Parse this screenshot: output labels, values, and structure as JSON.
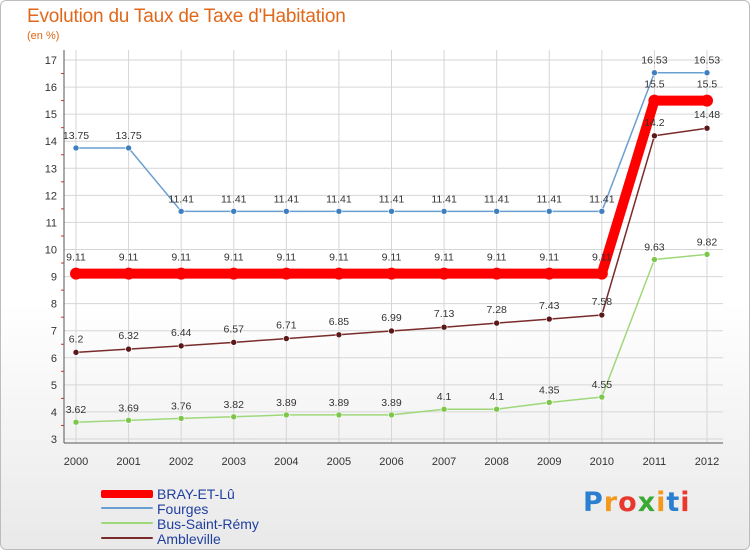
{
  "header": {
    "title": "Evolution du Taux de Taxe d'Habitation",
    "subtitle": "(en %)"
  },
  "chart_data": {
    "type": "line",
    "title": "Evolution du Taux de Taxe d'Habitation",
    "ylabel": "(en %)",
    "xlabel": "",
    "ylim": [
      3,
      17
    ],
    "yticks": [
      3,
      4,
      5,
      6,
      7,
      8,
      9,
      10,
      11,
      12,
      13,
      14,
      15,
      16,
      17
    ],
    "categories": [
      "2000",
      "2001",
      "2002",
      "2003",
      "2004",
      "2005",
      "2006",
      "2007",
      "2008",
      "2009",
      "2010",
      "2011",
      "2012"
    ],
    "grid": true,
    "legend": "bottom-left",
    "series": [
      {
        "name": "Fourges",
        "key": "fourges",
        "color": "#6a9fd1",
        "marker": "#3f7fc0",
        "values": [
          13.75,
          13.75,
          11.41,
          11.41,
          11.41,
          11.41,
          11.41,
          11.41,
          11.41,
          11.41,
          11.41,
          16.53,
          16.53
        ],
        "labels": [
          "13.75",
          "13.75",
          "11.41",
          "11.41",
          "11.41",
          "11.41",
          "11.41",
          "11.41",
          "11.41",
          "11.41",
          "11.41",
          "16.53",
          "16.53"
        ]
      },
      {
        "name": "Ambleville",
        "key": "ambleville",
        "color": "#7a2b2b",
        "marker": "#5a1818",
        "values": [
          6.2,
          6.32,
          6.44,
          6.57,
          6.71,
          6.85,
          6.99,
          7.13,
          7.28,
          7.43,
          7.58,
          14.2,
          14.48
        ],
        "labels": [
          "6.2",
          "6.32",
          "6.44",
          "6.57",
          "6.71",
          "6.85",
          "6.99",
          "7.13",
          "7.28",
          "7.43",
          "7.58",
          "14.2",
          "14.48"
        ]
      },
      {
        "name": "Bus-Saint-Rémy",
        "key": "bus_saint_remy",
        "color": "#9fd87a",
        "marker": "#7cc64a",
        "values": [
          3.62,
          3.69,
          3.76,
          3.82,
          3.89,
          3.89,
          3.89,
          4.1,
          4.1,
          4.35,
          4.55,
          9.63,
          9.82
        ],
        "labels": [
          "3.62",
          "3.69",
          "3.76",
          "3.82",
          "3.89",
          "3.89",
          "3.89",
          "4.1",
          "4.1",
          "4.35",
          "4.55",
          "9.63",
          "9.82"
        ]
      },
      {
        "name": "BRAY-ET-Lû",
        "key": "bray_et_lu",
        "color": "#ff0000",
        "marker": "#ff0000",
        "values": [
          9.11,
          9.11,
          9.11,
          9.11,
          9.11,
          9.11,
          9.11,
          9.11,
          9.11,
          9.11,
          9.11,
          15.5,
          15.5
        ],
        "labels": [
          "9.11",
          "9.11",
          "9.11",
          "9.11",
          "9.11",
          "9.11",
          "9.11",
          "9.11",
          "9.11",
          "9.11",
          "9.11",
          "15.5",
          "15.5"
        ]
      }
    ]
  },
  "legend": {
    "items": [
      {
        "label": "BRAY-ET-Lû",
        "color": "#ff0000"
      },
      {
        "label": "Fourges",
        "color": "#6a9fd1"
      },
      {
        "label": "Bus-Saint-Rémy",
        "color": "#9fd87a"
      },
      {
        "label": "Ambleville",
        "color": "#7a2b2b"
      }
    ]
  },
  "logo": {
    "text": "Proxiti",
    "letters": [
      "P",
      "r",
      "o",
      "x",
      "i",
      "t",
      "i"
    ],
    "colors": [
      "#2a7fd0",
      "#f39a1e",
      "#e8382e",
      "#3aaa35",
      "#f39a1e",
      "#2a7fd0",
      "#e8382e"
    ]
  }
}
